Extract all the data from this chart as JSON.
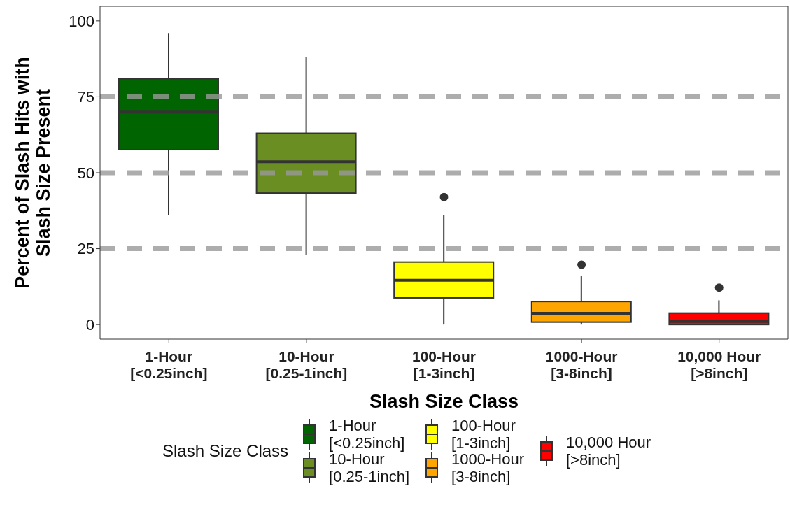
{
  "chart_data": {
    "type": "box",
    "xlabel": "Slash Size Class",
    "ylabel": "Percent of Slash Hits with\nSlash Size Present",
    "legend_title": "Slash Size Class",
    "categories": [
      "1-Hour\n[<0.25inch]",
      "10-Hour\n[0.25-1inch]",
      "100-Hour\n[1-3inch]",
      "1000-Hour\n[3-8inch]",
      "10,000 Hour\n[>8inch]"
    ],
    "series": [
      {
        "name": "1-Hour\n[<0.25inch]",
        "color": "#006400",
        "boxes": [
          {
            "low": 36,
            "q1": 57.6,
            "median": 70,
            "q3": 81,
            "high": 96
          },
          null,
          null,
          null,
          null
        ]
      },
      {
        "name": "10-Hour\n[0.25-1inch]",
        "color": "#6b8e23",
        "boxes": [
          null,
          {
            "low": 23,
            "q1": 43.3,
            "median": 53.6,
            "q3": 63,
            "high": 88
          },
          null,
          null,
          null
        ]
      },
      {
        "name": "100-Hour\n[1-3inch]",
        "color": "#ffff00",
        "boxes": [
          null,
          null,
          {
            "low": 0,
            "q1": 8.8,
            "median": 14.6,
            "q3": 20.6,
            "high": 36,
            "outliers": [
              42
            ]
          },
          null,
          null
        ]
      },
      {
        "name": "1000-Hour\n[3-8inch]",
        "color": "#ffa500",
        "boxes": [
          null,
          null,
          null,
          {
            "low": 0,
            "q1": 0.8,
            "median": 3.7,
            "q3": 7.6,
            "high": 16,
            "outliers": [
              19.7
            ]
          },
          null
        ]
      },
      {
        "name": "10,000 Hour\n[>8inch]",
        "color": "#ff0000",
        "boxes": [
          null,
          null,
          null,
          null,
          {
            "low": 0,
            "q1": 0,
            "median": 1,
            "q3": 3.8,
            "high": 8,
            "outliers": [
              12.2
            ]
          }
        ]
      }
    ],
    "ylim": [
      -4.8,
      104.8
    ],
    "yticks": [
      0,
      25,
      50,
      75,
      100
    ],
    "ref_lines": [
      {
        "axis": "y",
        "value": 25,
        "color": "#999999",
        "line_style": "dashed"
      },
      {
        "axis": "y",
        "value": 50,
        "color": "#999999",
        "line_style": "dashed"
      },
      {
        "axis": "y",
        "value": 75,
        "color": "#999999",
        "line_style": "dashed"
      }
    ],
    "grid": false,
    "legend": "bottom"
  }
}
